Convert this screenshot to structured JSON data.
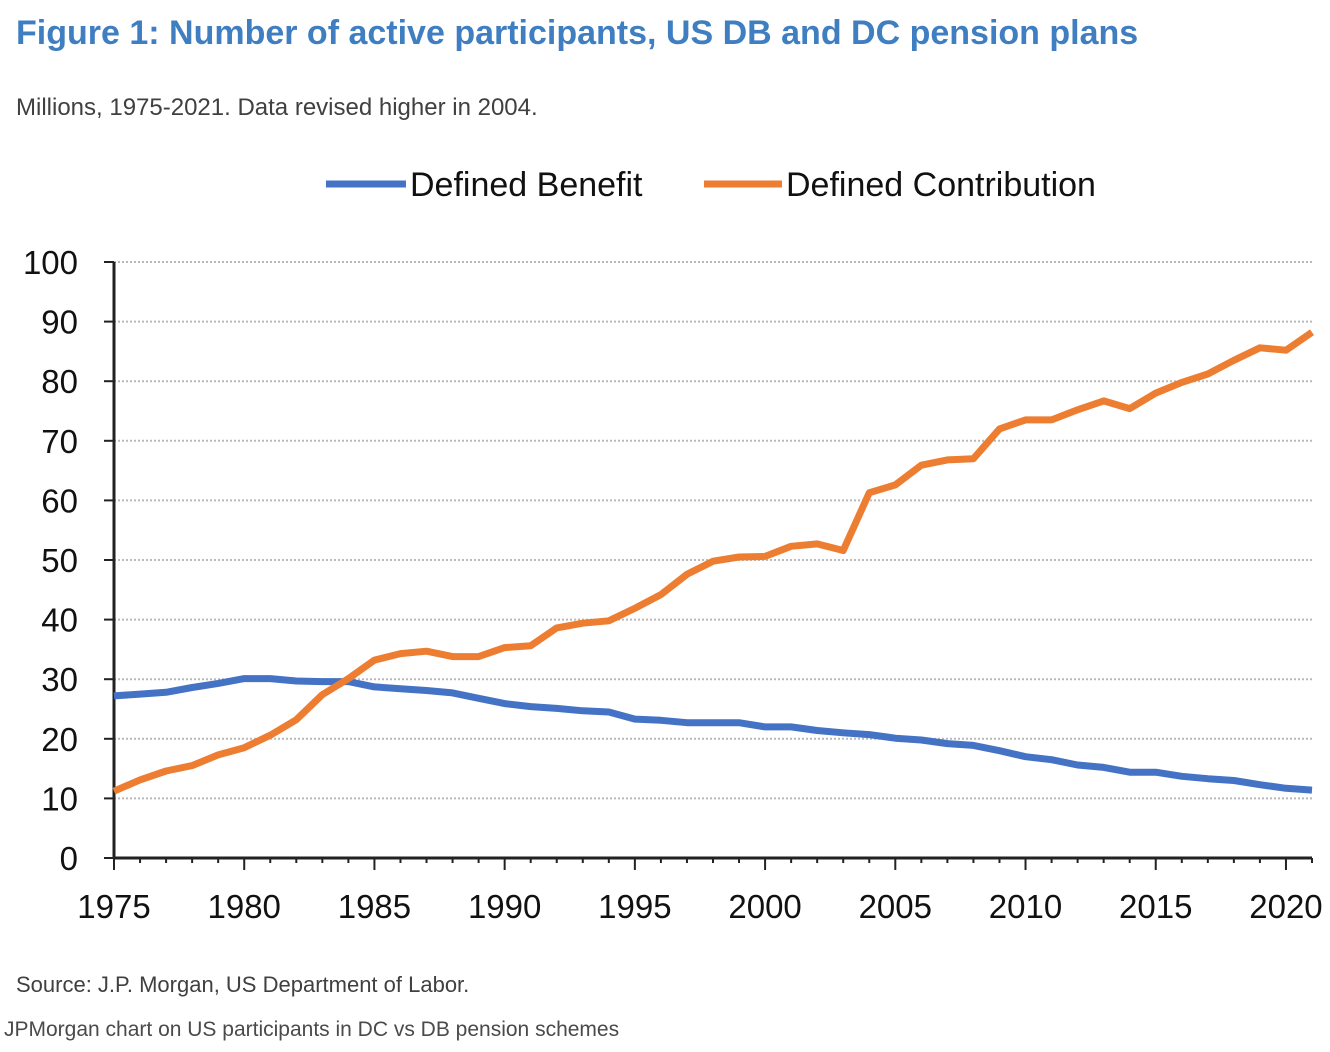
{
  "title": "Figure 1: Number of active participants, US DB and DC pension plans",
  "subtitle": "Millions, 1975-2021. Data revised higher in 2004.",
  "source": "Source: J.P. Morgan, US Department of Labor.",
  "caption": "JPMorgan chart on US participants in DC vs DB pension schemes",
  "chart_data": {
    "type": "line",
    "title": "Figure 1: Number of active participants, US DB and DC pension plans",
    "subtitle": "Millions, 1975-2021. Data revised higher in 2004.",
    "xlabel": "",
    "ylabel": "",
    "xlim": [
      1975,
      2021
    ],
    "ylim": [
      0,
      100
    ],
    "x_ticks": [
      1975,
      1980,
      1985,
      1990,
      1995,
      2000,
      2005,
      2010,
      2015,
      2020
    ],
    "y_ticks": [
      0,
      10,
      20,
      30,
      40,
      50,
      60,
      70,
      80,
      90,
      100
    ],
    "grid": "horizontal dotted",
    "legend_position": "top-center",
    "x": [
      1975,
      1976,
      1977,
      1978,
      1979,
      1980,
      1981,
      1982,
      1983,
      1984,
      1985,
      1986,
      1987,
      1988,
      1989,
      1990,
      1991,
      1992,
      1993,
      1994,
      1995,
      1996,
      1997,
      1998,
      1999,
      2000,
      2001,
      2002,
      2003,
      2004,
      2005,
      2006,
      2007,
      2008,
      2009,
      2010,
      2011,
      2012,
      2013,
      2014,
      2015,
      2016,
      2017,
      2018,
      2019,
      2020,
      2021
    ],
    "series": [
      {
        "name": "Defined Benefit",
        "color": "#4472c4",
        "values": [
          27.2,
          27.5,
          27.8,
          28.6,
          29.3,
          30.1,
          30.1,
          29.7,
          29.6,
          29.6,
          28.7,
          28.4,
          28.1,
          27.7,
          26.8,
          25.9,
          25.4,
          25.1,
          24.7,
          24.5,
          23.3,
          23.1,
          22.7,
          22.7,
          22.7,
          22.0,
          22.0,
          21.4,
          21.0,
          20.7,
          20.1,
          19.8,
          19.2,
          18.9,
          18.0,
          17.0,
          16.5,
          15.6,
          15.2,
          14.4,
          14.4,
          13.7,
          13.3,
          13.0,
          12.3,
          11.7,
          11.4
        ]
      },
      {
        "name": "Defined Contribution",
        "color": "#ed7d31",
        "values": [
          11.2,
          13.1,
          14.6,
          15.5,
          17.3,
          18.5,
          20.6,
          23.2,
          27.4,
          30.1,
          33.2,
          34.3,
          34.7,
          33.8,
          33.8,
          35.3,
          35.6,
          38.6,
          39.4,
          39.8,
          41.9,
          44.2,
          47.6,
          49.8,
          50.5,
          50.6,
          52.3,
          52.7,
          51.6,
          61.3,
          62.6,
          65.9,
          66.8,
          67.0,
          72.0,
          73.5,
          73.5,
          75.2,
          76.7,
          75.4,
          78.0,
          79.8,
          81.2,
          83.5,
          85.6,
          85.2,
          88.2
        ]
      }
    ]
  }
}
